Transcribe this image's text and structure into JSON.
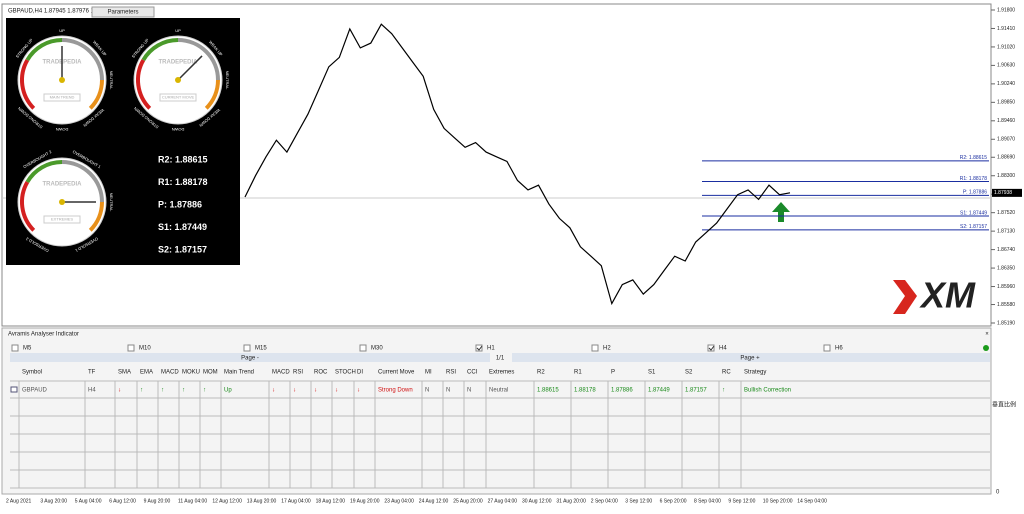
{
  "header": {
    "symbol_info": "GBPAUD,H4 1.87945 1.87976 1.87",
    "parameters_button": "Parameters"
  },
  "chart_data": {
    "type": "line",
    "color": "#000000",
    "values": [
      1.8785,
      1.883,
      1.887,
      1.8905,
      1.888,
      1.892,
      1.896,
      1.901,
      1.906,
      1.908,
      1.914,
      1.91,
      1.911,
      1.915,
      1.913,
      1.91,
      1.907,
      1.904,
      1.897,
      1.893,
      1.891,
      1.889,
      1.89,
      1.888,
      1.887,
      1.886,
      1.882,
      1.88,
      1.881,
      1.877,
      1.874,
      1.872,
      1.868,
      1.866,
      1.864,
      1.856,
      1.86,
      1.861,
      1.858,
      1.86,
      1.863,
      1.866,
      1.865,
      1.869,
      1.871,
      1.873,
      1.876,
      1.879,
      1.88,
      1.878,
      1.881,
      1.879,
      1.8794
    ],
    "ylim": [
      1.8519,
      1.918
    ],
    "yticks": [
      {
        "value": 1.918,
        "label": "1.91800"
      },
      {
        "value": 1.9141,
        "label": "1.91410"
      },
      {
        "value": 1.9102,
        "label": "1.91020"
      },
      {
        "value": 1.9063,
        "label": "1.90630"
      },
      {
        "value": 1.9024,
        "label": "1.90240"
      },
      {
        "value": 1.8985,
        "label": "1.89850"
      },
      {
        "value": 1.8946,
        "label": "1.89460"
      },
      {
        "value": 1.8907,
        "label": "1.89070"
      },
      {
        "value": 1.8869,
        "label": "1.88690"
      },
      {
        "value": 1.883,
        "label": "1.88300"
      },
      {
        "value": 1.8791,
        "label": "1.87910"
      },
      {
        "value": 1.8752,
        "label": "1.87520"
      },
      {
        "value": 1.8713,
        "label": "1.87130"
      },
      {
        "value": 1.8674,
        "label": "1.86740"
      },
      {
        "value": 1.8635,
        "label": "1.86350"
      },
      {
        "value": 1.8596,
        "label": "1.85960"
      },
      {
        "value": 1.8558,
        "label": "1.85580"
      },
      {
        "value": 1.8519,
        "label": "1.85190"
      }
    ],
    "current_price": {
      "value": 1.87938,
      "label": "1.87938"
    },
    "pivot_lines": [
      {
        "value": 1.88615,
        "label": "R2: 1.88615"
      },
      {
        "value": 1.88178,
        "label": "R1: 1.88178"
      },
      {
        "value": 1.87886,
        "label": "P: 1.87886"
      },
      {
        "value": 1.87449,
        "label": "S1: 1.87449"
      },
      {
        "value": 1.87157,
        "label": "S2: 1.87157"
      }
    ],
    "x_labels": [
      "2 Aug 2021",
      "3 Aug 20:00",
      "5 Aug 04:00",
      "6 Aug 12:00",
      "9 Aug 20:00",
      "11 Aug 04:00",
      "12 Aug 12:00",
      "13 Aug 20:00",
      "17 Aug 04:00",
      "18 Aug 12:00",
      "19 Aug 20:00",
      "23 Aug 04:00",
      "24 Aug 12:00",
      "25 Aug 20:00",
      "27 Aug 04:00",
      "30 Aug 12:00",
      "31 Aug 20:00",
      "2 Sep 04:00",
      "3 Sep 12:00",
      "6 Sep 20:00",
      "8 Sep 04:00",
      "9 Sep 12:00",
      "10 Sep 20:00",
      "14 Sep 04:00"
    ]
  },
  "gauges": [
    {
      "brand": "TRADEPEDIA",
      "name": "MAIN TREND",
      "labels": [
        "STRONG UP",
        "UP",
        "WEAK UP",
        "NEUTRAL",
        "WEAK DOWN",
        "DOWN",
        "STRONG DOWN"
      ]
    },
    {
      "brand": "TRADEPEDIA",
      "name": "CURRENT MOVE",
      "labels": [
        "STRONG UP",
        "UP",
        "WEAK UP",
        "NEUTRAL",
        "WEAK DOWN",
        "DOWN",
        "STRONG DOWN"
      ]
    },
    {
      "brand": "TRADEPEDIA",
      "name": "EXTREMES",
      "labels": [
        "OVERBOUGHT 2",
        "OVERBOUGHT 1",
        "NEUTRAL",
        "OVERSOLD 1",
        "OVERSOLD 2"
      ]
    }
  ],
  "pivot_panel": [
    "R2: 1.88615",
    "R1: 1.88178",
    "P:   1.87886",
    "S1: 1.87449",
    "S2: 1.87157"
  ],
  "logo": "XM",
  "indicator_panel": {
    "title": "Avramis Analyser Indicator",
    "timeframes": [
      {
        "label": "M5",
        "checked": false
      },
      {
        "label": "M10",
        "checked": false
      },
      {
        "label": "M15",
        "checked": false
      },
      {
        "label": "M30",
        "checked": false
      },
      {
        "label": "H1",
        "checked": true
      },
      {
        "label": "H2",
        "checked": false
      },
      {
        "label": "H4",
        "checked": true
      },
      {
        "label": "H6",
        "checked": false
      }
    ],
    "page_prev": "Page -",
    "page_count": "1/1",
    "page_next": "Page +",
    "columns": [
      "Symbol",
      "TF",
      "SMA",
      "EMA",
      "MACD",
      "MOKU",
      "MOM",
      "Main Trend",
      "MACD",
      "RSI",
      "ROC",
      "STOCH",
      "DI",
      "Current Move",
      "MI",
      "RSI",
      "CCI",
      "Extremes",
      "R2",
      "R1",
      "P",
      "S1",
      "S2",
      "RC",
      "Strategy"
    ],
    "rows": [
      [
        "GBPAUD",
        "H4",
        "↓",
        "↑",
        "↑",
        "↑",
        "↑",
        "Up",
        "↓",
        "↓",
        "↓",
        "↓",
        "↓",
        "Strong Down",
        "N",
        "N",
        "N",
        "Neutral",
        "1.88615",
        "1.88178",
        "1.87886",
        "1.87449",
        "1.87157",
        "↑",
        "Bullish Correction"
      ]
    ],
    "side_label": "垂直比例",
    "side_zero": "0"
  }
}
